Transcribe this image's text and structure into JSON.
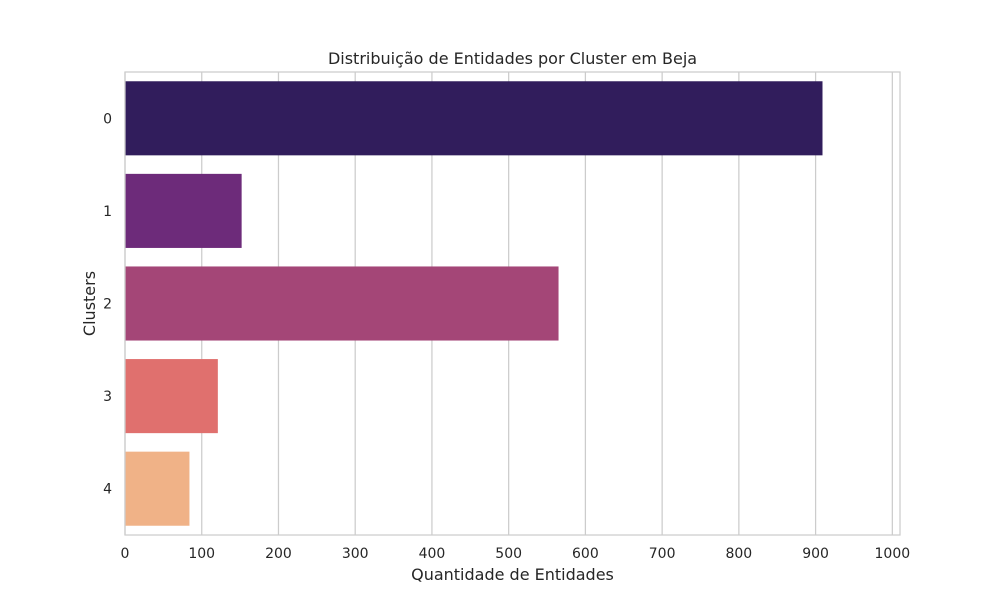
{
  "chart_data": {
    "type": "bar",
    "orientation": "horizontal",
    "title": "Distribuição de Entidades por Cluster em Beja",
    "xlabel": "Quantidade de Entidades",
    "ylabel": "Clusters",
    "categories": [
      "0",
      "1",
      "2",
      "3",
      "4"
    ],
    "values": [
      909,
      152,
      565,
      121,
      84
    ],
    "colors": [
      "#311d5c",
      "#6d2b7a",
      "#a44677",
      "#e0706e",
      "#f0b287"
    ],
    "xlim": [
      0,
      1010
    ],
    "xticks": [
      "0",
      "100",
      "200",
      "300",
      "400",
      "500",
      "600",
      "700",
      "800",
      "900",
      "1000"
    ],
    "grid": "vertical",
    "legend": "none"
  }
}
